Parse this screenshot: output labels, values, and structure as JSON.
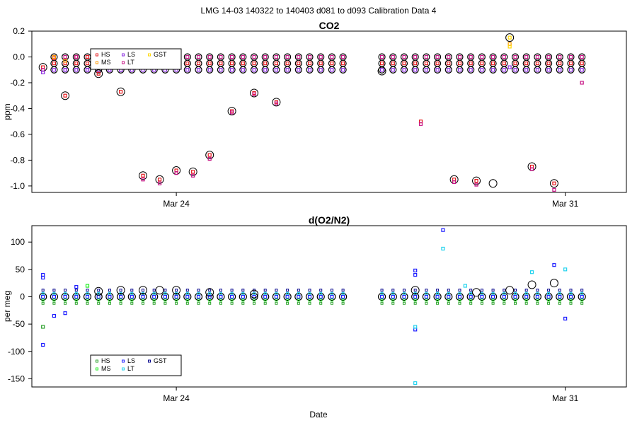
{
  "page_title": "LMG   14-03    140322 to 140403    d081 to d093   Calibration Data 4",
  "colors": {
    "HS": "#e41a1c",
    "MS": "#ff9900",
    "LS": "#8a2be2",
    "LT": "#c71585",
    "GST": "#ffd700",
    "HS2": "#2ca02c",
    "MS2": "#22ee22",
    "LS2": "#1f1fff",
    "LT2": "#22d3ee",
    "GST2": "#00008b"
  },
  "chart_data": [
    {
      "type": "scatter",
      "title": "CO2",
      "xlabel": "",
      "ylabel": "ppm",
      "xticks": [
        {
          "label": "Mar 24",
          "value": 24
        },
        {
          "label": "Mar 31",
          "value": 31
        }
      ],
      "xlim": [
        21.4,
        32.1
      ],
      "ylim": [
        -1.05,
        0.2
      ],
      "yticks": [
        0.2,
        0.0,
        -0.2,
        -0.4,
        -0.6,
        -0.8,
        -1.0
      ],
      "ytick_labels": [
        "0.2",
        "0.0",
        "-0.2",
        "-0.4",
        "-0.6",
        "-0.8",
        "-1.0"
      ],
      "legend": {
        "position": "top-left",
        "entries": [
          "HS",
          "MS",
          "LS",
          "LT",
          "GST"
        ]
      },
      "points": [
        {
          "x": 21.6,
          "s": "HS",
          "y": -0.08
        },
        {
          "x": 21.6,
          "s": "LT",
          "y": -0.1
        },
        {
          "x": 21.6,
          "s": "LS",
          "y": -0.12
        },
        {
          "x": 21.8,
          "s": "HS",
          "y": -0.01
        },
        {
          "x": 21.8,
          "s": "MS",
          "y": 0.0
        },
        {
          "x": 22.0,
          "s": "HS",
          "y": -0.3
        },
        {
          "x": 22.0,
          "s": "LS",
          "y": -0.1
        },
        {
          "x": 22.0,
          "s": "MS",
          "y": -0.03
        },
        {
          "x": 22.2,
          "s": "HS",
          "y": 0.0
        },
        {
          "x": 22.2,
          "s": "LT",
          "y": 0.0
        },
        {
          "x": 22.4,
          "s": "LS",
          "y": -0.1
        },
        {
          "x": 22.4,
          "s": "HS",
          "y": 0.0
        },
        {
          "x": 22.6,
          "s": "HS",
          "y": -0.13
        },
        {
          "x": 22.6,
          "s": "MS",
          "y": -0.04
        },
        {
          "x": 22.8,
          "s": "LS",
          "y": -0.1
        },
        {
          "x": 22.8,
          "s": "HS",
          "y": -0.05
        },
        {
          "x": 23.0,
          "s": "HS",
          "y": -0.27
        },
        {
          "x": 23.0,
          "s": "LS",
          "y": -0.1
        },
        {
          "x": 23.4,
          "s": "HS",
          "y": -0.92
        },
        {
          "x": 23.4,
          "s": "LT",
          "y": -0.95
        },
        {
          "x": 23.7,
          "s": "HS",
          "y": -0.95
        },
        {
          "x": 23.7,
          "s": "LT",
          "y": -0.98
        },
        {
          "x": 24.0,
          "s": "HS",
          "y": -0.88
        },
        {
          "x": 24.0,
          "s": "LT",
          "y": -0.9
        },
        {
          "x": 24.3,
          "s": "HS",
          "y": -0.89
        },
        {
          "x": 24.3,
          "s": "LT",
          "y": -0.92
        },
        {
          "x": 24.6,
          "s": "HS",
          "y": -0.76
        },
        {
          "x": 24.6,
          "s": "LT",
          "y": -0.79
        },
        {
          "x": 25.0,
          "s": "HS",
          "y": -0.42
        },
        {
          "x": 25.0,
          "s": "LT",
          "y": -0.43
        },
        {
          "x": 25.4,
          "s": "HS",
          "y": -0.28
        },
        {
          "x": 25.4,
          "s": "LT",
          "y": -0.29
        },
        {
          "x": 25.8,
          "s": "HS",
          "y": -0.35
        },
        {
          "x": 25.8,
          "s": "LT",
          "y": -0.36
        },
        {
          "x": 28.4,
          "s": "HS",
          "y": -0.5
        },
        {
          "x": 28.4,
          "s": "LT",
          "y": -0.52
        },
        {
          "x": 29.0,
          "s": "HS",
          "y": -0.95
        },
        {
          "x": 29.0,
          "s": "LT",
          "y": -0.97
        },
        {
          "x": 29.4,
          "s": "HS",
          "y": -0.96
        },
        {
          "x": 29.4,
          "s": "LT",
          "y": -0.99
        },
        {
          "x": 30.0,
          "s": "GST",
          "y": 0.15
        },
        {
          "x": 30.0,
          "s": "MS",
          "y": 0.1
        },
        {
          "x": 30.0,
          "s": "GST",
          "y": 0.08
        },
        {
          "x": 30.0,
          "s": "LS",
          "y": -0.08
        },
        {
          "x": 30.4,
          "s": "HS",
          "y": -0.85
        },
        {
          "x": 30.4,
          "s": "LT",
          "y": -0.87
        },
        {
          "x": 30.8,
          "s": "HS",
          "y": -0.98
        },
        {
          "x": 30.8,
          "s": "LT",
          "y": -1.03
        },
        {
          "x": 31.3,
          "s": "LT",
          "y": -0.2
        }
      ],
      "pattern": {
        "x_segments": [
          [
            21.8,
            27.0
          ],
          [
            27.7,
            31.3
          ]
        ],
        "step": 0.2,
        "levels": [
          0.0,
          -0.05,
          -0.1
        ],
        "level_series": [
          "LT",
          "HS",
          "LS"
        ]
      },
      "circles": [
        {
          "x": 21.6,
          "y": -0.08
        },
        {
          "x": 22.0,
          "y": -0.3
        },
        {
          "x": 22.6,
          "y": -0.13
        },
        {
          "x": 23.0,
          "y": -0.27
        },
        {
          "x": 23.4,
          "y": -0.92
        },
        {
          "x": 23.7,
          "y": -0.95
        },
        {
          "x": 24.0,
          "y": -0.88
        },
        {
          "x": 24.3,
          "y": -0.89
        },
        {
          "x": 24.6,
          "y": -0.76
        },
        {
          "x": 25.0,
          "y": -0.42
        },
        {
          "x": 25.4,
          "y": -0.28
        },
        {
          "x": 25.8,
          "y": -0.35
        },
        {
          "x": 27.7,
          "y": -0.11
        },
        {
          "x": 29.0,
          "y": -0.95
        },
        {
          "x": 29.4,
          "y": -0.96
        },
        {
          "x": 29.7,
          "y": -0.98
        },
        {
          "x": 30.0,
          "y": 0.15
        },
        {
          "x": 30.4,
          "y": -0.85
        },
        {
          "x": 30.8,
          "y": -0.98
        }
      ]
    },
    {
      "type": "scatter",
      "title": "d(O2/N2)",
      "xlabel": "Date",
      "ylabel": "per meg",
      "xticks": [
        {
          "label": "Mar 24",
          "value": 24
        },
        {
          "label": "Mar 31",
          "value": 31
        }
      ],
      "xlim": [
        21.4,
        32.1
      ],
      "ylim": [
        -165,
        130
      ],
      "yticks": [
        100,
        50,
        0,
        -50,
        -100,
        -150
      ],
      "ytick_labels": [
        "100",
        "50",
        "0",
        "-50",
        "-100",
        "-150"
      ],
      "legend": {
        "position": "bottom-left",
        "entries": [
          "HS",
          "MS",
          "LS",
          "LT",
          "GST"
        ]
      },
      "points": [
        {
          "x": 21.6,
          "s": "LS2",
          "y": -88
        },
        {
          "x": 21.6,
          "s": "LS2",
          "y": 40
        },
        {
          "x": 21.6,
          "s": "LS2",
          "y": 35
        },
        {
          "x": 21.6,
          "s": "HS2",
          "y": -55
        },
        {
          "x": 21.8,
          "s": "LS2",
          "y": -35
        },
        {
          "x": 22.0,
          "s": "LS2",
          "y": -30
        },
        {
          "x": 22.2,
          "s": "LS2",
          "y": 18
        },
        {
          "x": 22.4,
          "s": "MS2",
          "y": 20
        },
        {
          "x": 28.3,
          "s": "LT2",
          "y": -158
        },
        {
          "x": 28.3,
          "s": "LS2",
          "y": -60
        },
        {
          "x": 28.3,
          "s": "LT2",
          "y": -55
        },
        {
          "x": 28.3,
          "s": "LS2",
          "y": 48
        },
        {
          "x": 28.3,
          "s": "LS2",
          "y": 40
        },
        {
          "x": 28.8,
          "s": "LS2",
          "y": 122
        },
        {
          "x": 28.8,
          "s": "LT2",
          "y": 88
        },
        {
          "x": 29.2,
          "s": "LT2",
          "y": 20
        },
        {
          "x": 30.4,
          "s": "LT2",
          "y": 45
        },
        {
          "x": 30.8,
          "s": "LS2",
          "y": 58
        },
        {
          "x": 31.0,
          "s": "LT2",
          "y": 50
        },
        {
          "x": 31.0,
          "s": "LS2",
          "y": -40
        }
      ],
      "pattern": {
        "x_segments": [
          [
            21.6,
            27.0
          ],
          [
            27.7,
            31.3
          ]
        ],
        "step": 0.2,
        "levels": [
          0.0
        ],
        "level_series": [
          "LS2"
        ]
      },
      "circles": [
        {
          "x": 22.6,
          "y": 10
        },
        {
          "x": 23.0,
          "y": 12
        },
        {
          "x": 23.4,
          "y": 12
        },
        {
          "x": 23.7,
          "y": 12
        },
        {
          "x": 24.0,
          "y": 12
        },
        {
          "x": 24.6,
          "y": 8
        },
        {
          "x": 25.4,
          "y": 5
        },
        {
          "x": 28.3,
          "y": 12
        },
        {
          "x": 29.4,
          "y": 8
        },
        {
          "x": 30.0,
          "y": 12
        },
        {
          "x": 30.4,
          "y": 22
        },
        {
          "x": 30.8,
          "y": 25
        }
      ]
    }
  ]
}
